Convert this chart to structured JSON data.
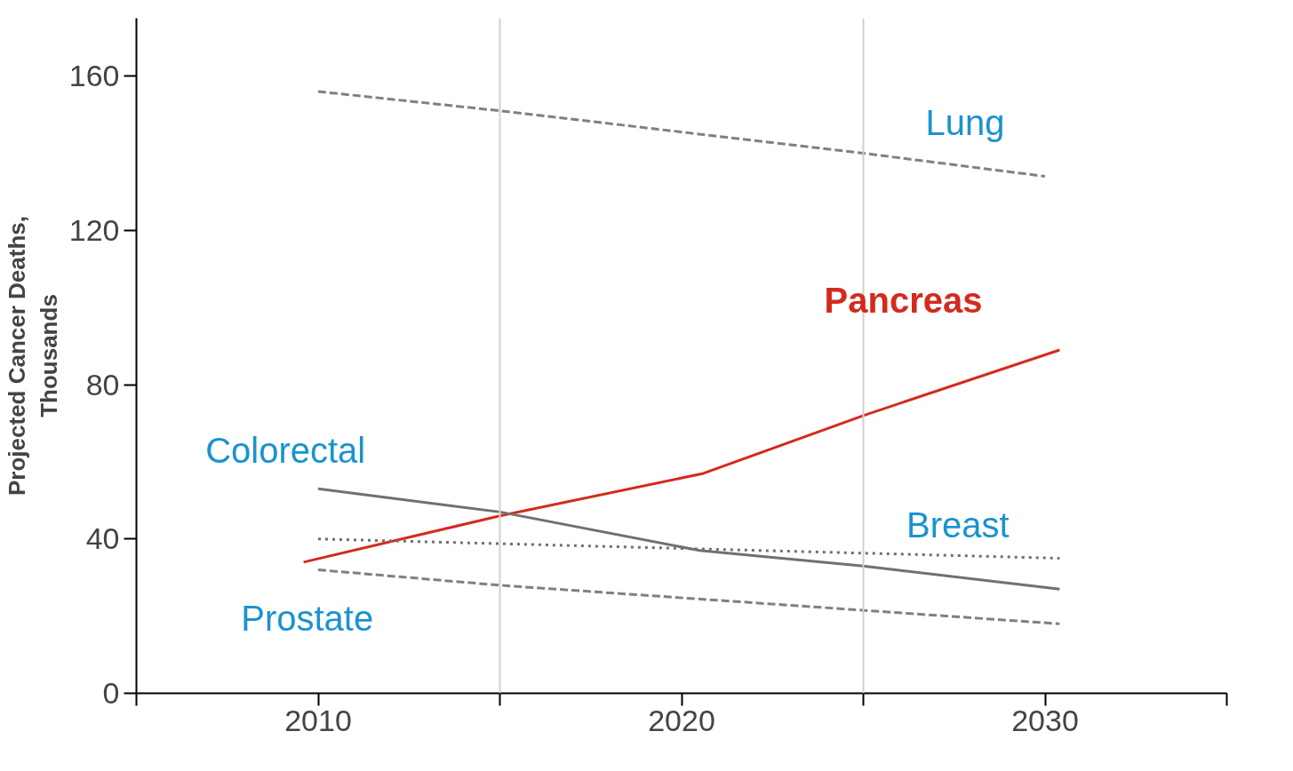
{
  "chart_data": {
    "type": "line",
    "ylabel": "Projected Cancer Deaths,\nThousands",
    "xlim": [
      2005,
      2035
    ],
    "ylim": [
      0,
      175
    ],
    "xticks": [
      {
        "value": 2005,
        "label": null
      },
      {
        "value": 2010,
        "label": "2010"
      },
      {
        "value": 2015,
        "label": null
      },
      {
        "value": 2020,
        "label": "2020"
      },
      {
        "value": 2025,
        "label": null
      },
      {
        "value": 2030,
        "label": "2030"
      },
      {
        "value": 2035,
        "label": null
      }
    ],
    "yticks": [
      0,
      40,
      80,
      120,
      160
    ],
    "grid": false,
    "ref_lines": [
      {
        "axis": "x",
        "value": 2015,
        "label": null,
        "color": "#d0d0d0"
      },
      {
        "axis": "x",
        "value": 2025,
        "label": null,
        "color": "#d0d0d0"
      }
    ],
    "series": [
      {
        "name": "Lung",
        "color": "#808080",
        "line_style": "dashed",
        "x": [
          2010,
          2015,
          2025,
          2030
        ],
        "values": [
          156,
          151,
          140,
          134
        ]
      },
      {
        "name": "Pancreas",
        "color": "#d42a1e",
        "line_style": "solid",
        "x": [
          2009.6,
          2015,
          2020.6,
          2025,
          2030.4
        ],
        "values": [
          34,
          46,
          57,
          72,
          89
        ]
      },
      {
        "name": "Colorectal",
        "color": "#707070",
        "line_style": "solid",
        "x": [
          2010,
          2015,
          2020.5,
          2025,
          2030.4
        ],
        "values": [
          53,
          47,
          37,
          33,
          27
        ]
      },
      {
        "name": "Breast",
        "color": "#707070",
        "line_style": "dotted",
        "x": [
          2010,
          2030.4
        ],
        "values": [
          40,
          35
        ]
      },
      {
        "name": "Prostate",
        "color": "#808080",
        "line_style": "dashed",
        "x": [
          2010,
          2015,
          2030.4
        ],
        "values": [
          32,
          28,
          18
        ]
      }
    ]
  }
}
